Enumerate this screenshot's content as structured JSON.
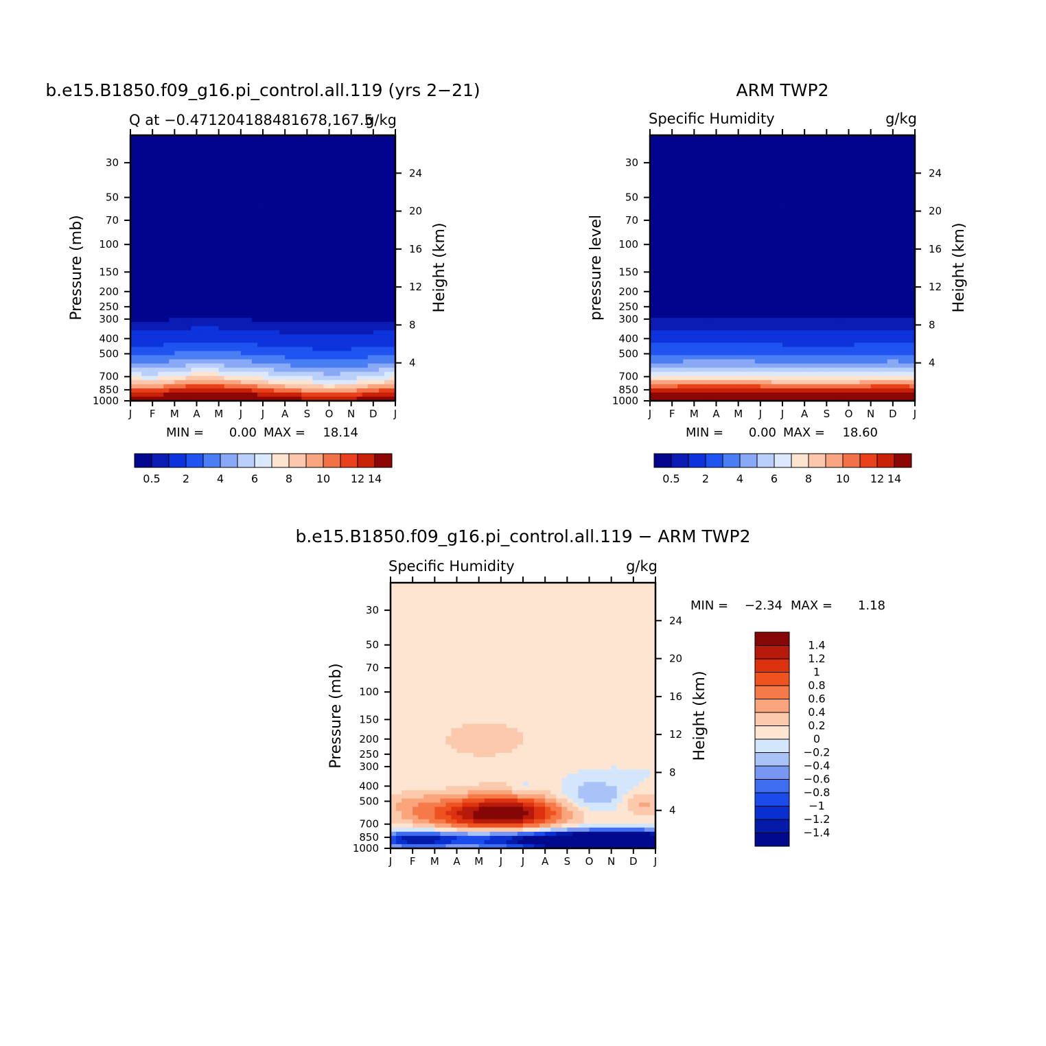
{
  "palettes": {
    "absolute": [
      "#02058e",
      "#0a1cb3",
      "#0c33dc",
      "#1f54f0",
      "#4a7ef2",
      "#89a9f6",
      "#b9cef9",
      "#dce9fd",
      "#fde4d1",
      "#fbc8ae",
      "#f9a680",
      "#f27247",
      "#e8401b",
      "#c92008",
      "#8c0606"
    ],
    "difference": [
      "#010a8c",
      "#031ba8",
      "#0a2fd0",
      "#1b4bea",
      "#3f6df0",
      "#7797f3",
      "#a9c3f8",
      "#d4e6fc",
      "#fde5d2",
      "#fbc9ac",
      "#faa47c",
      "#f67a49",
      "#ed521f",
      "#dc3210",
      "#b71a0a",
      "#850707"
    ]
  },
  "chart_data": [
    {
      "type": "contour",
      "id": "model",
      "title": "b.e15.B1850.f09_g16.pi_control.all.119 (yrs 2−21)",
      "subtitle_left": "Q at −0.471204188481678,167.5",
      "subtitle_right": "g/kg",
      "x_ticks": [
        "J",
        "F",
        "M",
        "A",
        "M",
        "J",
        "J",
        "A",
        "S",
        "O",
        "N",
        "D",
        "J"
      ],
      "y_ticks": [
        "30",
        "50",
        "70",
        "100",
        "150",
        "200",
        "250",
        "300",
        "400",
        "500",
        "700",
        "850",
        "1000"
      ],
      "y_tick_values": [
        30,
        50,
        70,
        100,
        150,
        200,
        250,
        300,
        400,
        500,
        700,
        850,
        1000
      ],
      "ylim": [
        20,
        1000
      ],
      "ylabel": "Pressure (mb)",
      "y2label": "Height (km)",
      "y2_ticks": [
        "24",
        "20",
        "16",
        "12",
        "8",
        "4"
      ],
      "y2_tick_values": [
        24,
        20,
        16,
        12,
        8,
        4
      ],
      "stats": {
        "min_label": "MIN =",
        "min": "0.00",
        "max_label": "MAX =",
        "max": "18.14"
      },
      "profile_g_kg": [
        [
          1000,
          17.8
        ],
        [
          925,
          14.5
        ],
        [
          850,
          11.4
        ],
        [
          775,
          8.8
        ],
        [
          700,
          6.8
        ],
        [
          600,
          4.6
        ],
        [
          500,
          2.9
        ],
        [
          400,
          1.45
        ],
        [
          300,
          0.45
        ],
        [
          250,
          0.2
        ],
        [
          200,
          0.07
        ],
        [
          100,
          0.004
        ],
        [
          30,
          0.003
        ]
      ],
      "monthly_factor": [
        1.0,
        0.95,
        1.06,
        1.17,
        1.13,
        1.07,
        0.98,
        0.9,
        0.84,
        0.8,
        0.82,
        0.92,
        1.0
      ],
      "colorbar": {
        "orientation": "horizontal",
        "levels": [
          0.1,
          0.5,
          1,
          2,
          3,
          4,
          5,
          6,
          7,
          8,
          9,
          10,
          11,
          12,
          14,
          16
        ],
        "labels": [
          "0.5",
          "2",
          "4",
          "6",
          "8",
          "10",
          "12",
          "14"
        ]
      }
    },
    {
      "type": "contour",
      "id": "obs",
      "title": "ARM TWP2",
      "subtitle_left": "Specific Humidity",
      "subtitle_right": "g/kg",
      "x_ticks": [
        "J",
        "F",
        "M",
        "A",
        "M",
        "J",
        "J",
        "A",
        "S",
        "O",
        "N",
        "D",
        "J"
      ],
      "y_ticks": [
        "30",
        "50",
        "70",
        "100",
        "150",
        "200",
        "250",
        "300",
        "400",
        "500",
        "700",
        "850",
        "1000"
      ],
      "y_tick_values": [
        30,
        50,
        70,
        100,
        150,
        200,
        250,
        300,
        400,
        500,
        700,
        850,
        1000
      ],
      "ylim": [
        20,
        1000
      ],
      "ylabel": "pressure level",
      "y2label": "Height (km)",
      "y2_ticks": [
        "24",
        "20",
        "16",
        "12",
        "8",
        "4"
      ],
      "y2_tick_values": [
        24,
        20,
        16,
        12,
        8,
        4
      ],
      "stats": {
        "min_label": "MIN =",
        "min": "0.00",
        "max_label": "MAX =",
        "max": "18.60"
      },
      "profile_g_kg": [
        [
          1000,
          18.4
        ],
        [
          925,
          15.5
        ],
        [
          850,
          12.6
        ],
        [
          775,
          9.6
        ],
        [
          700,
          7.0
        ],
        [
          600,
          4.6
        ],
        [
          500,
          2.9
        ],
        [
          400,
          1.5
        ],
        [
          300,
          0.5
        ],
        [
          250,
          0.2
        ],
        [
          200,
          0.07
        ],
        [
          100,
          0.004
        ],
        [
          30,
          0.003
        ]
      ],
      "monthly_factor": [
        1.0,
        1.0,
        1.04,
        1.06,
        1.05,
        1.01,
        0.98,
        0.97,
        0.95,
        0.97,
        1.01,
        1.03,
        1.0
      ],
      "colorbar": {
        "orientation": "horizontal",
        "levels": [
          0.1,
          0.5,
          1,
          2,
          3,
          4,
          5,
          6,
          7,
          8,
          9,
          10,
          11,
          12,
          14,
          16
        ],
        "labels": [
          "0.5",
          "2",
          "4",
          "6",
          "8",
          "10",
          "12",
          "14"
        ]
      }
    },
    {
      "type": "contour",
      "id": "diff",
      "title": "b.e15.B1850.f09_g16.pi_control.all.119 − ARM TWP2",
      "subtitle_left": "Specific Humidity",
      "subtitle_right": "g/kg",
      "x_ticks": [
        "J",
        "F",
        "M",
        "A",
        "M",
        "J",
        "J",
        "A",
        "S",
        "O",
        "N",
        "D",
        "J"
      ],
      "y_ticks": [
        "30",
        "50",
        "70",
        "100",
        "150",
        "200",
        "250",
        "300",
        "400",
        "500",
        "700",
        "850",
        "1000"
      ],
      "y_tick_values": [
        30,
        50,
        70,
        100,
        150,
        200,
        250,
        300,
        400,
        500,
        700,
        850,
        1000
      ],
      "ylim": [
        20,
        1000
      ],
      "ylabel": "Pressure (mb)",
      "y2label": "Height (km)",
      "y2_ticks": [
        "24",
        "20",
        "16",
        "12",
        "8",
        "4"
      ],
      "y2_tick_values": [
        24,
        20,
        16,
        12,
        8,
        4
      ],
      "stats": {
        "min_label": "MIN =",
        "min": "−2.34",
        "max_label": "MAX =",
        "max": "1.18"
      },
      "anomalies": [
        {
          "month": 4.6,
          "p": 610,
          "dm": 2.2,
          "dlogp": 0.085,
          "amp": 1.3
        },
        {
          "month": 5.6,
          "p": 560,
          "dm": 1.7,
          "dlogp": 0.09,
          "amp": 0.45
        },
        {
          "month": 1.0,
          "p": 530,
          "dm": 1.0,
          "dlogp": 0.07,
          "amp": 0.3
        },
        {
          "month": 11.4,
          "p": 520,
          "dm": 0.7,
          "dlogp": 0.06,
          "amp": 0.45
        },
        {
          "month": 4.3,
          "p": 200,
          "dm": 2.6,
          "dlogp": 0.16,
          "amp": 0.25
        },
        {
          "month": 11.0,
          "p": 190,
          "dm": 0.5,
          "dlogp": 0.07,
          "amp": 0.12
        },
        {
          "month": 9.2,
          "p": 460,
          "dm": 1.1,
          "dlogp": 0.07,
          "amp": -0.45
        },
        {
          "month": 6.0,
          "p": 420,
          "dm": 0.4,
          "dlogp": 0.04,
          "amp": -0.3
        },
        {
          "month": 9.4,
          "p": 900,
          "dm": 2.3,
          "dlogp": 0.045,
          "amp": -2.3
        },
        {
          "month": 4.5,
          "p": 870,
          "dm": 3.0,
          "dlogp": 0.04,
          "amp": -1.1
        },
        {
          "month": 1.0,
          "p": 880,
          "dm": 1.2,
          "dlogp": 0.035,
          "amp": -0.9
        },
        {
          "month": 11.5,
          "p": 880,
          "dm": 1.0,
          "dlogp": 0.035,
          "amp": -1.0
        }
      ],
      "colorbar": {
        "orientation": "vertical",
        "levels": [
          -100,
          -1.4,
          -1.2,
          -1,
          -0.8,
          -0.6,
          -0.4,
          -0.2,
          0,
          0.2,
          0.4,
          0.6,
          0.8,
          1,
          1.2,
          1.4,
          100
        ],
        "labels": [
          "1.4",
          "1.2",
          "1",
          "0.8",
          "0.6",
          "0.4",
          "0.2",
          "0",
          "−0.2",
          "−0.4",
          "−0.6",
          "−0.8",
          "−1",
          "−1.2",
          "−1.4"
        ],
        "label_values": [
          1.4,
          1.2,
          1,
          0.8,
          0.6,
          0.4,
          0.2,
          0,
          -0.2,
          -0.4,
          -0.6,
          -0.8,
          -1,
          -1.2,
          -1.4
        ]
      }
    }
  ]
}
